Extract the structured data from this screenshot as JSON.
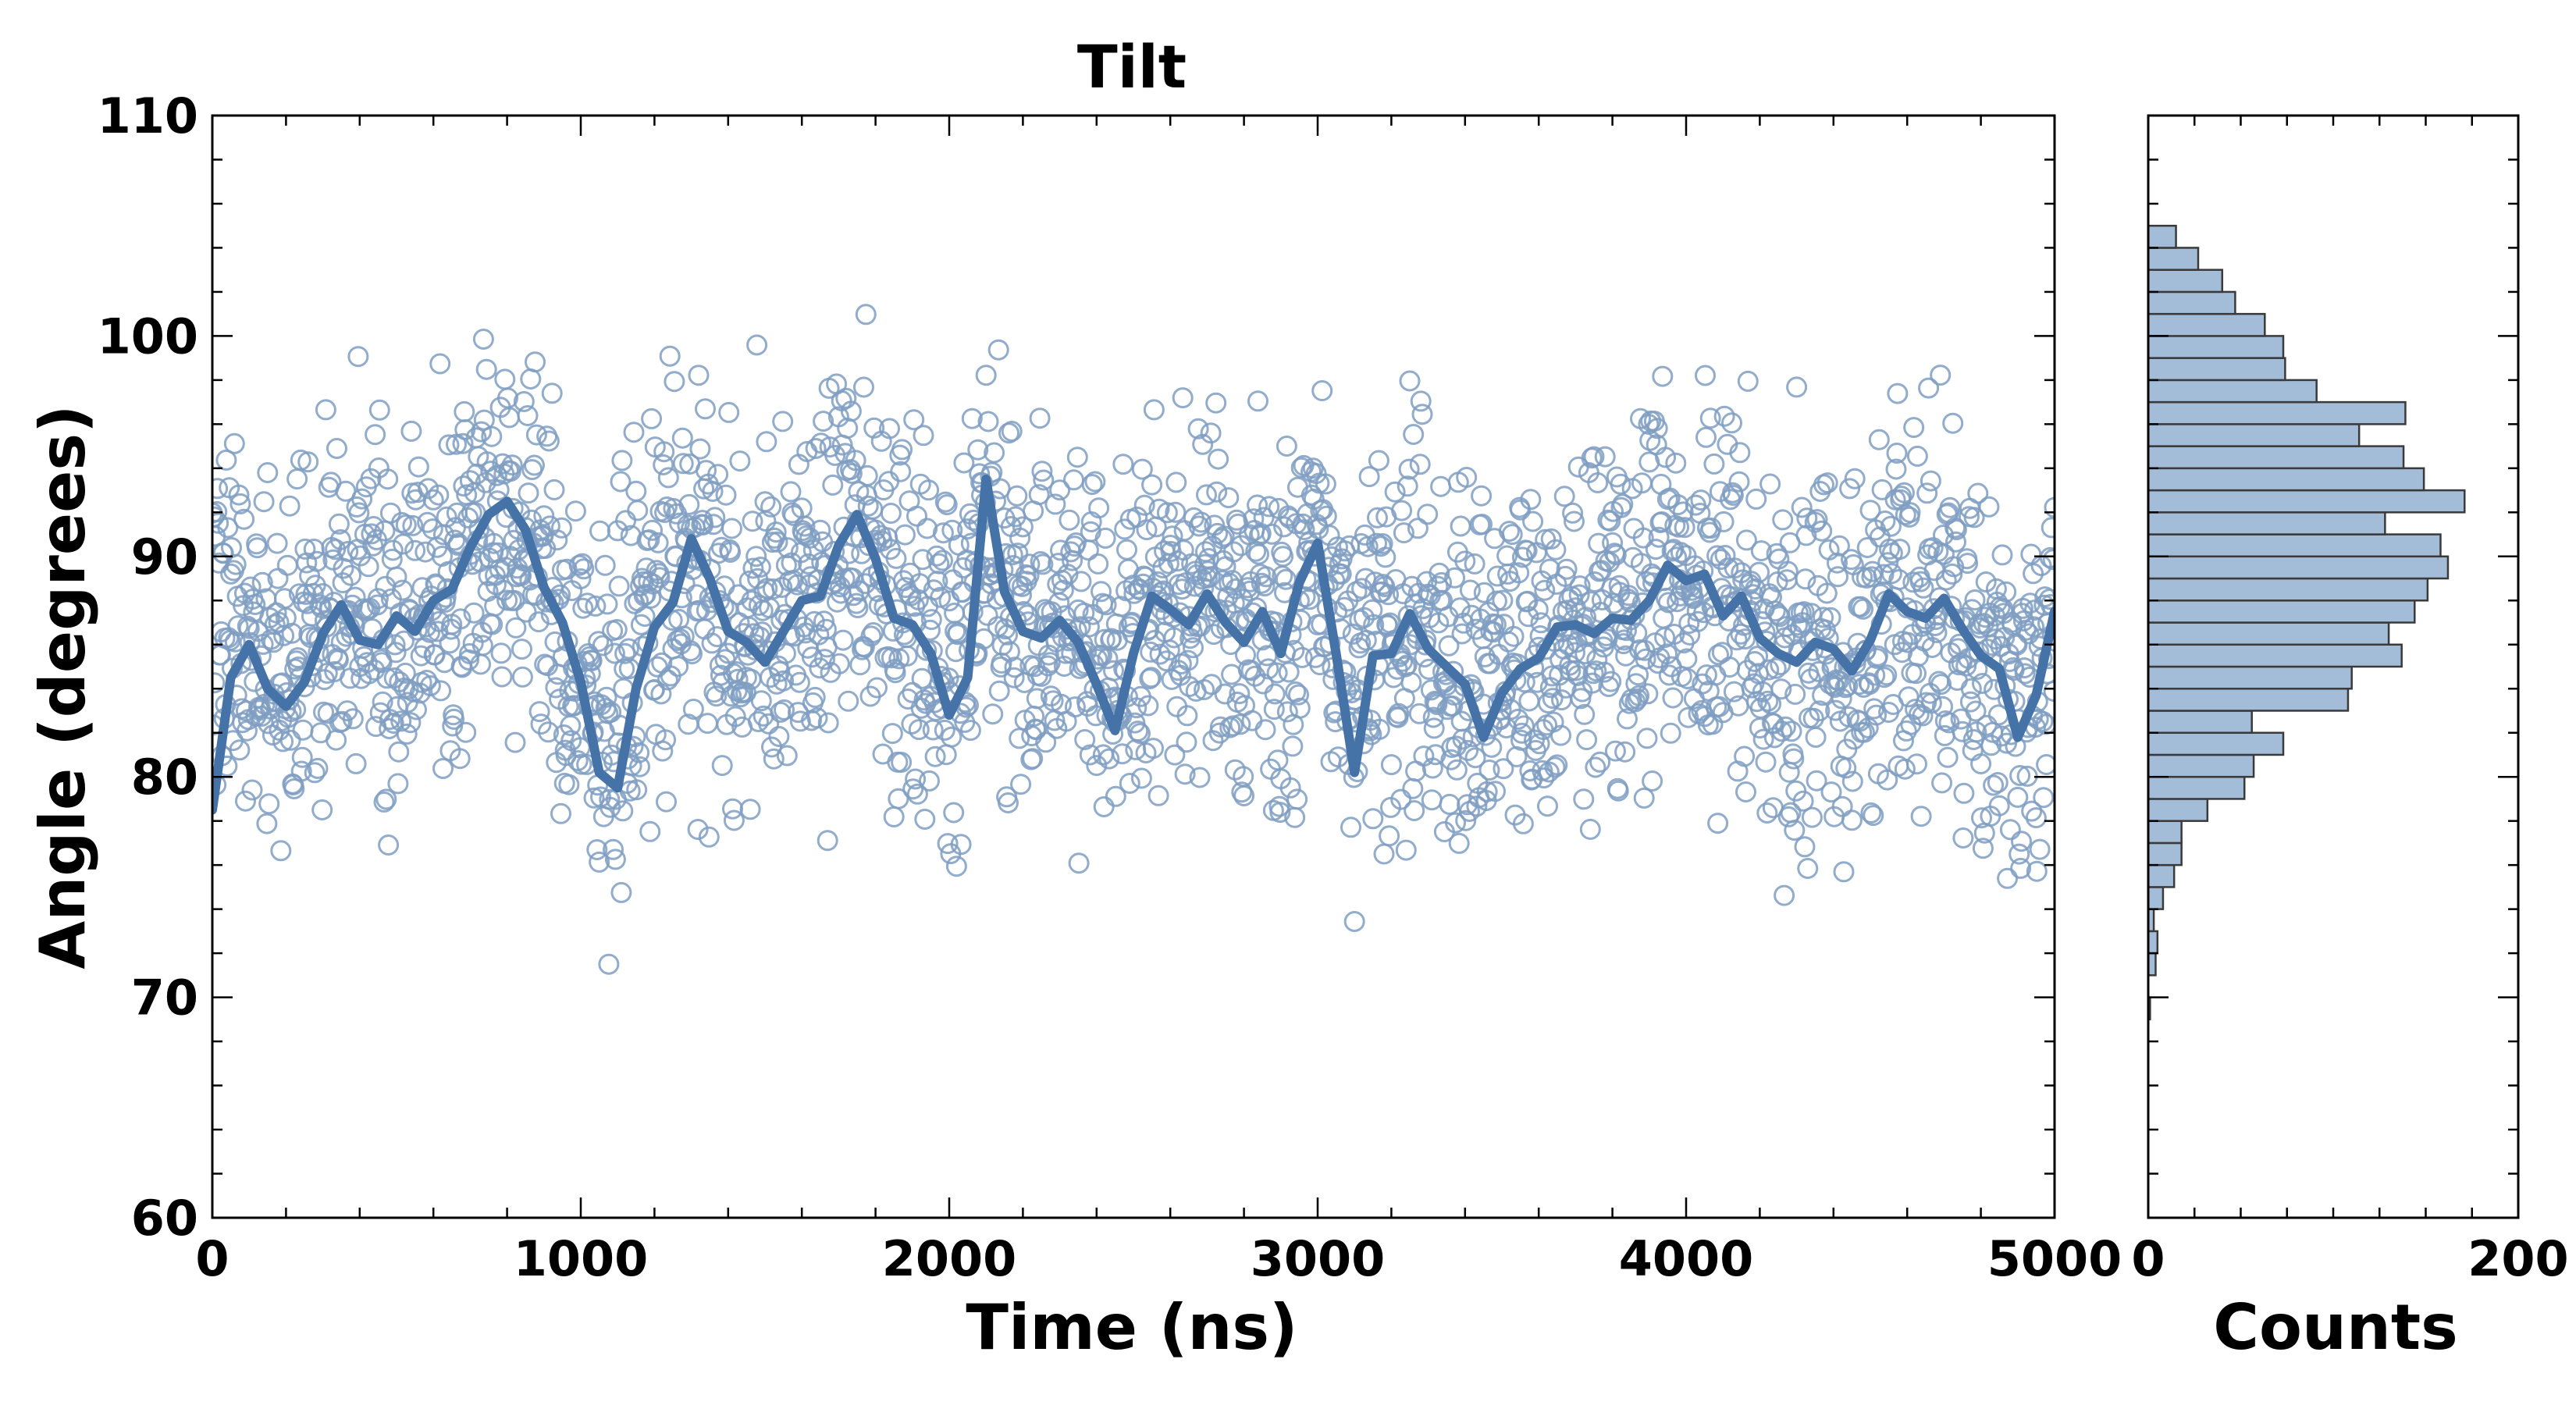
{
  "chart_data": [
    {
      "type": "scatter",
      "title": "Tilt",
      "xlabel": "Time (ns)",
      "ylabel": "Angle (degrees)",
      "xlim": [
        0,
        5000
      ],
      "ylim": [
        60,
        110
      ],
      "x_ticks": [
        "0",
        "1000",
        "2000",
        "3000",
        "4000",
        "5000"
      ],
      "y_ticks": [
        "60",
        "70",
        "80",
        "90",
        "100",
        "110"
      ],
      "grid": false,
      "colors": {
        "points": "#7f9ec2",
        "line": "#4572a7"
      },
      "series": [
        {
          "kind": "scatter",
          "note": "raw samples every 2 ns, open circles",
          "x": [
            0,
            50,
            100,
            150,
            200,
            250,
            300,
            350,
            400,
            450,
            500,
            550,
            600,
            650,
            700,
            750,
            800,
            850,
            900,
            950,
            1000,
            1050,
            1100,
            1150,
            1200,
            1250,
            1300,
            1350,
            1400,
            1450,
            1500,
            1550,
            1600,
            1650,
            1700,
            1750,
            1800,
            1850,
            1900,
            1950,
            2000,
            2050,
            2100,
            2150,
            2200,
            2250,
            2300,
            2350,
            2400,
            2450,
            2500,
            2550,
            2600,
            2650,
            2700,
            2750,
            2800,
            2850,
            2900,
            2950,
            3000,
            3050,
            3100,
            3150,
            3200,
            3250,
            3300,
            3350,
            3400,
            3450,
            3500,
            3550,
            3600,
            3650,
            3700,
            3750,
            3800,
            3850,
            3900,
            3950,
            4000,
            4050,
            4100,
            4150,
            4200,
            4250,
            4300,
            4350,
            4400,
            4450,
            4500,
            4550,
            4600,
            4650,
            4700,
            4750,
            4800,
            4850,
            4900,
            4950,
            5000
          ],
          "y": [
            88.1,
            86.4,
            87.0,
            85.3,
            85.0,
            85.7,
            86.8,
            88.2,
            87.0,
            86.6,
            87.7,
            86.9,
            88.6,
            88.8,
            90.3,
            91.7,
            92.1,
            91.4,
            88.9,
            87.4,
            85.1,
            83.6,
            84.5,
            85.5,
            87.2,
            88.4,
            90.5,
            88.8,
            87.1,
            86.6,
            85.7,
            87.1,
            88.3,
            88.6,
            90.1,
            91.4,
            89.7,
            87.6,
            87.2,
            86.3,
            84.6,
            85.3,
            91.6,
            88.1,
            86.9,
            86.6,
            87.5,
            86.5,
            84.7,
            83.8,
            85.9,
            88.0,
            87.8,
            87.2,
            88.5,
            87.2,
            86.5,
            87.8,
            86.2,
            88.7,
            89.2,
            86.0,
            84.1,
            86.2,
            85.9,
            87.6,
            86.0,
            85.4,
            84.8,
            84.2,
            84.6,
            85.1,
            85.7,
            86.9,
            87.0,
            86.6,
            87.4,
            87.3,
            88.1,
            89.3,
            88.7,
            88.8,
            87.6,
            88.3,
            86.6,
            85.9,
            85.5,
            86.5,
            86.0,
            85.1,
            86.5,
            87.8,
            87.4,
            87.3,
            88.1,
            87.1,
            85.8,
            85.3,
            84.2,
            84.3,
            87.2
          ]
        },
        {
          "kind": "line",
          "note": "running average",
          "x": [
            0,
            50,
            100,
            150,
            200,
            250,
            300,
            350,
            400,
            450,
            500,
            550,
            600,
            650,
            700,
            750,
            800,
            850,
            900,
            950,
            1000,
            1050,
            1100,
            1150,
            1200,
            1250,
            1300,
            1350,
            1400,
            1450,
            1500,
            1550,
            1600,
            1650,
            1700,
            1750,
            1800,
            1850,
            1900,
            1950,
            2000,
            2050,
            2100,
            2150,
            2200,
            2250,
            2300,
            2350,
            2400,
            2450,
            2500,
            2550,
            2600,
            2650,
            2700,
            2750,
            2800,
            2850,
            2900,
            2950,
            3000,
            3050,
            3100,
            3150,
            3200,
            3250,
            3300,
            3350,
            3400,
            3450,
            3500,
            3550,
            3600,
            3650,
            3700,
            3750,
            3800,
            3850,
            3900,
            3950,
            4000,
            4050,
            4100,
            4150,
            4200,
            4250,
            4300,
            4350,
            4400,
            4450,
            4500,
            4550,
            4600,
            4650,
            4700,
            4750,
            4800,
            4850,
            4900,
            4950,
            5000
          ],
          "y": [
            78.5,
            84.5,
            86.0,
            84.0,
            83.2,
            84.3,
            86.5,
            87.8,
            86.2,
            86.0,
            87.3,
            86.6,
            88.0,
            88.5,
            90.4,
            91.9,
            92.5,
            91.2,
            88.6,
            87.0,
            84.3,
            80.2,
            79.5,
            84.0,
            86.8,
            87.9,
            90.8,
            89.0,
            86.6,
            86.1,
            85.2,
            86.6,
            88.0,
            88.2,
            90.5,
            91.9,
            89.9,
            87.2,
            86.9,
            85.6,
            82.8,
            84.5,
            93.5,
            88.4,
            86.6,
            86.3,
            87.1,
            86.1,
            84.2,
            82.1,
            85.6,
            88.2,
            87.6,
            86.9,
            88.3,
            87.0,
            86.1,
            87.5,
            85.6,
            88.8,
            90.6,
            85.6,
            80.2,
            85.5,
            85.6,
            87.4,
            85.8,
            85.0,
            84.2,
            81.8,
            83.8,
            84.9,
            85.4,
            86.8,
            86.9,
            86.5,
            87.2,
            87.1,
            88.0,
            89.6,
            88.9,
            89.2,
            87.3,
            88.2,
            86.3,
            85.6,
            85.2,
            86.1,
            85.8,
            84.8,
            86.2,
            88.3,
            87.5,
            87.2,
            88.1,
            86.7,
            85.5,
            84.9,
            81.8,
            83.7,
            87.5
          ]
        }
      ]
    },
    {
      "type": "bar",
      "orientation": "horizontal",
      "xlabel": "Counts",
      "ylabel": "",
      "xlim": [
        0,
        200
      ],
      "ylim": [
        60,
        110
      ],
      "x_ticks": [
        "0",
        "200"
      ],
      "colors": {
        "bars": "#a3bcd8",
        "edges": "#3a3a3a"
      },
      "bin_edges": [
        69,
        70,
        71,
        72,
        73,
        74,
        75,
        76,
        77,
        78,
        79,
        80,
        81,
        82,
        83,
        84,
        85,
        86,
        87,
        88,
        89,
        90,
        91,
        92,
        93,
        94,
        95,
        96,
        97,
        98,
        99,
        100,
        101,
        102,
        103,
        104,
        105
      ],
      "counts": [
        1,
        0,
        4,
        5,
        3,
        8,
        14,
        18,
        18,
        32,
        52,
        57,
        73,
        56,
        108,
        110,
        137,
        130,
        144,
        151,
        162,
        158,
        128,
        171,
        149,
        138,
        114,
        139,
        91,
        74,
        73,
        63,
        47,
        40,
        27,
        15
      ]
    }
  ]
}
